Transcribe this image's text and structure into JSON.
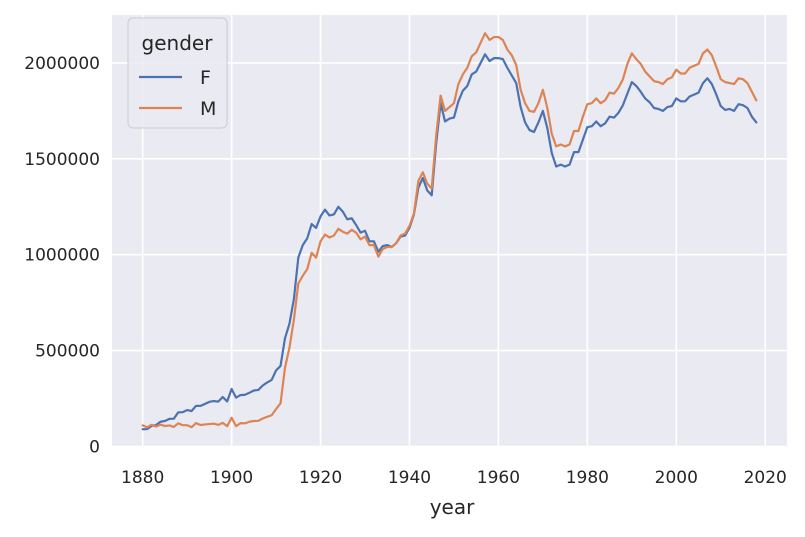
{
  "chart_data": {
    "type": "line",
    "title": "",
    "xlabel": "year",
    "ylabel": "",
    "xlim": [
      1873.1,
      2024.9
    ],
    "ylim": [
      -2600,
      2250000
    ],
    "xticks": [
      1880,
      1900,
      1920,
      1940,
      1960,
      1980,
      2000,
      2020
    ],
    "yticks": [
      0,
      500000,
      1000000,
      1500000,
      2000000
    ],
    "grid": true,
    "legend": {
      "title": "gender",
      "placement": "top-left"
    },
    "series": [
      {
        "name": "F",
        "color": "#4c72b0",
        "points": [
          [
            1880,
            90000
          ],
          [
            1881,
            91000
          ],
          [
            1882,
            107000
          ],
          [
            1883,
            112000
          ],
          [
            1884,
            129000
          ],
          [
            1885,
            133000
          ],
          [
            1886,
            144000
          ],
          [
            1887,
            145000
          ],
          [
            1888,
            178000
          ],
          [
            1889,
            179000
          ],
          [
            1890,
            190000
          ],
          [
            1891,
            185000
          ],
          [
            1892,
            212000
          ],
          [
            1893,
            212000
          ],
          [
            1894,
            222000
          ],
          [
            1895,
            233000
          ],
          [
            1896,
            237000
          ],
          [
            1897,
            234000
          ],
          [
            1898,
            258000
          ],
          [
            1899,
            235000
          ],
          [
            1900,
            300000
          ],
          [
            1901,
            255000
          ],
          [
            1902,
            268000
          ],
          [
            1903,
            270000
          ],
          [
            1904,
            280000
          ],
          [
            1905,
            292000
          ],
          [
            1906,
            295000
          ],
          [
            1907,
            318000
          ],
          [
            1908,
            334000
          ],
          [
            1909,
            347000
          ],
          [
            1910,
            397000
          ],
          [
            1911,
            420000
          ],
          [
            1912,
            564000
          ],
          [
            1913,
            640000
          ],
          [
            1914,
            768000
          ],
          [
            1915,
            985000
          ],
          [
            1916,
            1050000
          ],
          [
            1917,
            1085000
          ],
          [
            1918,
            1160000
          ],
          [
            1919,
            1140000
          ],
          [
            1920,
            1200000
          ],
          [
            1921,
            1235000
          ],
          [
            1922,
            1205000
          ],
          [
            1923,
            1210000
          ],
          [
            1924,
            1250000
          ],
          [
            1925,
            1225000
          ],
          [
            1926,
            1185000
          ],
          [
            1927,
            1190000
          ],
          [
            1928,
            1155000
          ],
          [
            1929,
            1115000
          ],
          [
            1930,
            1125000
          ],
          [
            1931,
            1070000
          ],
          [
            1932,
            1070000
          ],
          [
            1933,
            1015000
          ],
          [
            1934,
            1045000
          ],
          [
            1935,
            1050000
          ],
          [
            1936,
            1040000
          ],
          [
            1937,
            1060000
          ],
          [
            1938,
            1095000
          ],
          [
            1939,
            1100000
          ],
          [
            1940,
            1140000
          ],
          [
            1941,
            1210000
          ],
          [
            1942,
            1350000
          ],
          [
            1943,
            1400000
          ],
          [
            1944,
            1335000
          ],
          [
            1945,
            1310000
          ],
          [
            1946,
            1580000
          ],
          [
            1947,
            1790000
          ],
          [
            1948,
            1695000
          ],
          [
            1949,
            1710000
          ],
          [
            1950,
            1715000
          ],
          [
            1951,
            1800000
          ],
          [
            1952,
            1855000
          ],
          [
            1953,
            1880000
          ],
          [
            1954,
            1940000
          ],
          [
            1955,
            1955000
          ],
          [
            1956,
            2000000
          ],
          [
            1957,
            2045000
          ],
          [
            1958,
            2010000
          ],
          [
            1959,
            2025000
          ],
          [
            1960,
            2025000
          ],
          [
            1961,
            2020000
          ],
          [
            1962,
            1975000
          ],
          [
            1963,
            1935000
          ],
          [
            1964,
            1895000
          ],
          [
            1965,
            1770000
          ],
          [
            1966,
            1690000
          ],
          [
            1967,
            1650000
          ],
          [
            1968,
            1640000
          ],
          [
            1969,
            1690000
          ],
          [
            1970,
            1750000
          ],
          [
            1971,
            1660000
          ],
          [
            1972,
            1530000
          ],
          [
            1973,
            1460000
          ],
          [
            1974,
            1470000
          ],
          [
            1975,
            1460000
          ],
          [
            1976,
            1470000
          ],
          [
            1977,
            1535000
          ],
          [
            1978,
            1535000
          ],
          [
            1979,
            1600000
          ],
          [
            1980,
            1665000
          ],
          [
            1981,
            1670000
          ],
          [
            1982,
            1695000
          ],
          [
            1983,
            1670000
          ],
          [
            1984,
            1685000
          ],
          [
            1985,
            1720000
          ],
          [
            1986,
            1715000
          ],
          [
            1987,
            1740000
          ],
          [
            1988,
            1780000
          ],
          [
            1989,
            1840000
          ],
          [
            1990,
            1900000
          ],
          [
            1991,
            1880000
          ],
          [
            1992,
            1850000
          ],
          [
            1993,
            1815000
          ],
          [
            1994,
            1795000
          ],
          [
            1995,
            1765000
          ],
          [
            1996,
            1760000
          ],
          [
            1997,
            1750000
          ],
          [
            1998,
            1770000
          ],
          [
            1999,
            1775000
          ],
          [
            2000,
            1815000
          ],
          [
            2001,
            1800000
          ],
          [
            2002,
            1800000
          ],
          [
            2003,
            1825000
          ],
          [
            2004,
            1835000
          ],
          [
            2005,
            1845000
          ],
          [
            2006,
            1895000
          ],
          [
            2007,
            1920000
          ],
          [
            2008,
            1890000
          ],
          [
            2009,
            1835000
          ],
          [
            2010,
            1775000
          ],
          [
            2011,
            1755000
          ],
          [
            2012,
            1760000
          ],
          [
            2013,
            1750000
          ],
          [
            2014,
            1785000
          ],
          [
            2015,
            1780000
          ],
          [
            2016,
            1765000
          ],
          [
            2017,
            1720000
          ],
          [
            2018,
            1690000
          ]
        ]
      },
      {
        "name": "M",
        "color": "#dd8452",
        "points": [
          [
            1880,
            110000
          ],
          [
            1881,
            100000
          ],
          [
            1882,
            113000
          ],
          [
            1883,
            104000
          ],
          [
            1884,
            114000
          ],
          [
            1885,
            107000
          ],
          [
            1886,
            110000
          ],
          [
            1887,
            102000
          ],
          [
            1888,
            121000
          ],
          [
            1889,
            111000
          ],
          [
            1890,
            111000
          ],
          [
            1891,
            101000
          ],
          [
            1892,
            122000
          ],
          [
            1893,
            112000
          ],
          [
            1894,
            115000
          ],
          [
            1895,
            117000
          ],
          [
            1896,
            119000
          ],
          [
            1897,
            113000
          ],
          [
            1898,
            123000
          ],
          [
            1899,
            106000
          ],
          [
            1900,
            150000
          ],
          [
            1901,
            106000
          ],
          [
            1902,
            122000
          ],
          [
            1903,
            121000
          ],
          [
            1904,
            129000
          ],
          [
            1905,
            133000
          ],
          [
            1906,
            134000
          ],
          [
            1907,
            146000
          ],
          [
            1908,
            155000
          ],
          [
            1909,
            163000
          ],
          [
            1910,
            195000
          ],
          [
            1911,
            225000
          ],
          [
            1912,
            410000
          ],
          [
            1913,
            515000
          ],
          [
            1914,
            660000
          ],
          [
            1915,
            850000
          ],
          [
            1916,
            890000
          ],
          [
            1917,
            925000
          ],
          [
            1918,
            1010000
          ],
          [
            1919,
            985000
          ],
          [
            1920,
            1070000
          ],
          [
            1921,
            1105000
          ],
          [
            1922,
            1090000
          ],
          [
            1923,
            1100000
          ],
          [
            1924,
            1135000
          ],
          [
            1925,
            1120000
          ],
          [
            1926,
            1110000
          ],
          [
            1927,
            1130000
          ],
          [
            1928,
            1115000
          ],
          [
            1929,
            1080000
          ],
          [
            1930,
            1095000
          ],
          [
            1931,
            1050000
          ],
          [
            1932,
            1050000
          ],
          [
            1933,
            990000
          ],
          [
            1934,
            1030000
          ],
          [
            1935,
            1040000
          ],
          [
            1936,
            1040000
          ],
          [
            1937,
            1060000
          ],
          [
            1938,
            1100000
          ],
          [
            1939,
            1110000
          ],
          [
            1940,
            1150000
          ],
          [
            1941,
            1215000
          ],
          [
            1942,
            1385000
          ],
          [
            1943,
            1430000
          ],
          [
            1944,
            1370000
          ],
          [
            1945,
            1345000
          ],
          [
            1946,
            1620000
          ],
          [
            1947,
            1830000
          ],
          [
            1948,
            1750000
          ],
          [
            1949,
            1770000
          ],
          [
            1950,
            1790000
          ],
          [
            1951,
            1890000
          ],
          [
            1952,
            1940000
          ],
          [
            1953,
            1975000
          ],
          [
            1954,
            2035000
          ],
          [
            1955,
            2055000
          ],
          [
            1956,
            2105000
          ],
          [
            1957,
            2155000
          ],
          [
            1958,
            2120000
          ],
          [
            1959,
            2135000
          ],
          [
            1960,
            2135000
          ],
          [
            1961,
            2120000
          ],
          [
            1962,
            2070000
          ],
          [
            1963,
            2040000
          ],
          [
            1964,
            1990000
          ],
          [
            1965,
            1860000
          ],
          [
            1966,
            1790000
          ],
          [
            1967,
            1750000
          ],
          [
            1968,
            1745000
          ],
          [
            1969,
            1790000
          ],
          [
            1970,
            1860000
          ],
          [
            1971,
            1765000
          ],
          [
            1972,
            1630000
          ],
          [
            1973,
            1565000
          ],
          [
            1974,
            1575000
          ],
          [
            1975,
            1565000
          ],
          [
            1976,
            1575000
          ],
          [
            1977,
            1645000
          ],
          [
            1978,
            1645000
          ],
          [
            1979,
            1720000
          ],
          [
            1980,
            1785000
          ],
          [
            1981,
            1790000
          ],
          [
            1982,
            1815000
          ],
          [
            1983,
            1790000
          ],
          [
            1984,
            1805000
          ],
          [
            1985,
            1845000
          ],
          [
            1986,
            1840000
          ],
          [
            1987,
            1870000
          ],
          [
            1988,
            1915000
          ],
          [
            1989,
            1995000
          ],
          [
            1990,
            2050000
          ],
          [
            1991,
            2020000
          ],
          [
            1992,
            1995000
          ],
          [
            1993,
            1955000
          ],
          [
            1994,
            1930000
          ],
          [
            1995,
            1905000
          ],
          [
            1996,
            1900000
          ],
          [
            1997,
            1890000
          ],
          [
            1998,
            1915000
          ],
          [
            1999,
            1925000
          ],
          [
            2000,
            1965000
          ],
          [
            2001,
            1945000
          ],
          [
            2002,
            1945000
          ],
          [
            2003,
            1975000
          ],
          [
            2004,
            1985000
          ],
          [
            2005,
            1995000
          ],
          [
            2006,
            2050000
          ],
          [
            2007,
            2070000
          ],
          [
            2008,
            2040000
          ],
          [
            2009,
            1980000
          ],
          [
            2010,
            1915000
          ],
          [
            2011,
            1900000
          ],
          [
            2012,
            1895000
          ],
          [
            2013,
            1890000
          ],
          [
            2014,
            1920000
          ],
          [
            2015,
            1915000
          ],
          [
            2016,
            1895000
          ],
          [
            2017,
            1850000
          ],
          [
            2018,
            1805000
          ]
        ]
      }
    ]
  }
}
